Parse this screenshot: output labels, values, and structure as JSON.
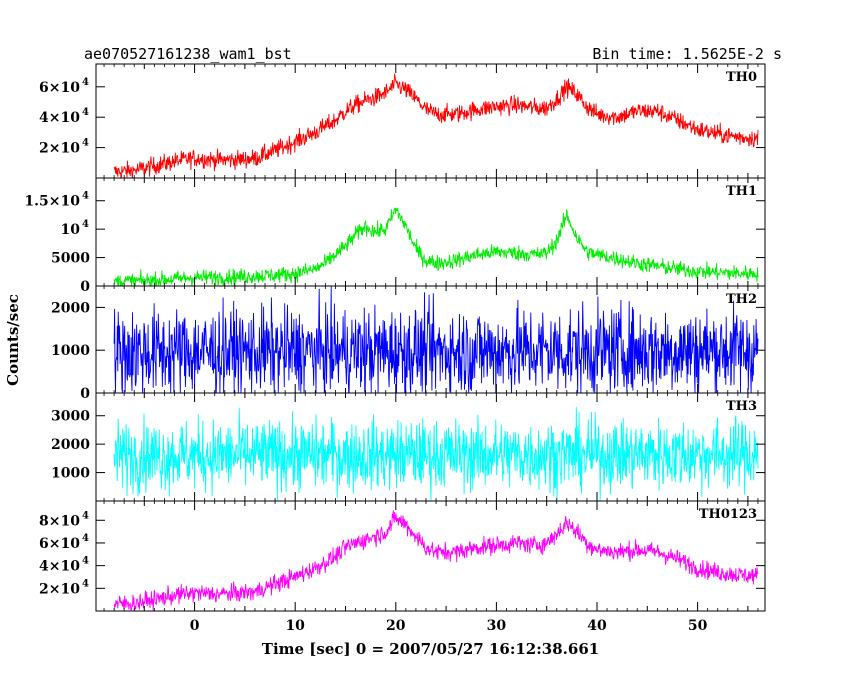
{
  "header": {
    "title": "ae070527161238_wam1_bst",
    "bin_time": "Bin time: 1.5625E-2 s"
  },
  "chart_data": {
    "type": "line",
    "title": "ae070527161238_wam1_bst",
    "xlabel": "Time [sec] 0 = 2007/05/27 16:12:38.661",
    "ylabel": "Counts/sec",
    "xlim": [
      -9.8,
      56.7
    ],
    "x_ticks": [
      0,
      10,
      20,
      30,
      40,
      50
    ],
    "grid": false,
    "panels": [
      {
        "name": "TH0",
        "color": "#ff0000",
        "ylim": [
          0,
          75000
        ],
        "y_ticks": [
          {
            "value": 20000,
            "label": "2×10",
            "exp": "4"
          },
          {
            "value": 40000,
            "label": "4×10",
            "exp": "4"
          },
          {
            "value": 60000,
            "label": "6×10",
            "exp": "4"
          }
        ],
        "x": [
          -8,
          -6,
          -4,
          -2,
          0,
          2,
          4,
          6,
          8,
          10,
          12,
          14,
          15,
          16,
          17,
          18,
          19,
          20,
          21,
          22,
          23,
          24,
          26,
          28,
          30,
          32,
          34,
          35,
          36,
          37,
          38,
          39,
          40,
          42,
          44,
          46,
          48,
          50,
          52,
          54,
          56
        ],
        "y": [
          4000,
          5000,
          8000,
          11000,
          13000,
          12000,
          12000,
          13000,
          18000,
          24000,
          30000,
          38000,
          44000,
          48000,
          51000,
          53000,
          56000,
          62000,
          58000,
          52000,
          45000,
          42000,
          42000,
          45000,
          47000,
          48000,
          46000,
          46000,
          52000,
          60000,
          55000,
          47000,
          42000,
          40000,
          44000,
          44000,
          38000,
          32000,
          29000,
          27000,
          26000
        ],
        "noise": 3000
      },
      {
        "name": "TH1",
        "color": "#00ee00",
        "ylim": [
          0,
          19000
        ],
        "y_ticks": [
          {
            "value": 0,
            "label": "0",
            "exp": ""
          },
          {
            "value": 5000,
            "label": "5000",
            "exp": ""
          },
          {
            "value": 10000,
            "label": "10",
            "exp": "4"
          },
          {
            "value": 15000,
            "label": "1.5×10",
            "exp": "4"
          }
        ],
        "x": [
          -8,
          -4,
          0,
          4,
          8,
          10,
          12,
          13,
          14,
          15,
          16,
          17,
          18,
          19,
          20,
          21,
          22,
          23,
          24,
          26,
          28,
          30,
          32,
          34,
          35,
          36,
          37,
          38,
          39,
          40,
          42,
          44,
          46,
          48,
          50,
          52,
          54,
          56
        ],
        "y": [
          800,
          1000,
          1500,
          1600,
          1900,
          2200,
          3000,
          4000,
          5500,
          7000,
          9000,
          10500,
          9500,
          10000,
          13500,
          10500,
          6500,
          4500,
          4000,
          4500,
          5500,
          6000,
          5800,
          5500,
          5800,
          8000,
          12500,
          8500,
          6000,
          5500,
          4800,
          4000,
          3500,
          3000,
          2600,
          2400,
          2200,
          2200
        ],
        "noise": 700
      },
      {
        "name": "TH2",
        "color": "#0000ff",
        "ylim": [
          0,
          2500
        ],
        "y_ticks": [
          {
            "value": 0,
            "label": "0",
            "exp": ""
          },
          {
            "value": 1000,
            "label": "1000",
            "exp": ""
          },
          {
            "value": 2000,
            "label": "2000",
            "exp": ""
          }
        ],
        "x": [
          -8,
          56
        ],
        "y": [
          950,
          1000
        ],
        "noise": 520
      },
      {
        "name": "TH3",
        "color": "#00ffff",
        "ylim": [
          0,
          3800
        ],
        "y_ticks": [
          {
            "value": 1000,
            "label": "1000",
            "exp": ""
          },
          {
            "value": 2000,
            "label": "2000",
            "exp": ""
          },
          {
            "value": 3000,
            "label": "3000",
            "exp": ""
          }
        ],
        "x": [
          -8,
          56
        ],
        "y": [
          1600,
          1650
        ],
        "noise": 620
      },
      {
        "name": "TH0123",
        "color": "#ff00ff",
        "ylim": [
          0,
          97000
        ],
        "y_ticks": [
          {
            "value": 20000,
            "label": "2×10",
            "exp": "4"
          },
          {
            "value": 40000,
            "label": "4×10",
            "exp": "4"
          },
          {
            "value": 60000,
            "label": "6×10",
            "exp": "4"
          },
          {
            "value": 80000,
            "label": "8×10",
            "exp": "4"
          }
        ],
        "x": [
          -8,
          -6,
          -4,
          -2,
          0,
          2,
          4,
          6,
          8,
          10,
          12,
          14,
          15,
          16,
          17,
          18,
          19,
          20,
          21,
          22,
          23,
          24,
          26,
          28,
          30,
          32,
          34,
          35,
          36,
          37,
          38,
          39,
          40,
          42,
          44,
          46,
          48,
          50,
          52,
          54,
          56
        ],
        "y": [
          6000,
          7000,
          10000,
          14000,
          16000,
          15000,
          15500,
          17000,
          24000,
          30000,
          38000,
          48000,
          56000,
          60000,
          63000,
          66000,
          70000,
          82000,
          76000,
          66000,
          56000,
          52000,
          52000,
          56000,
          58000,
          60000,
          58000,
          60000,
          68000,
          78000,
          70000,
          60000,
          54000,
          52000,
          54000,
          52000,
          46000,
          38000,
          34000,
          32000,
          31000
        ],
        "noise": 4000
      }
    ]
  }
}
